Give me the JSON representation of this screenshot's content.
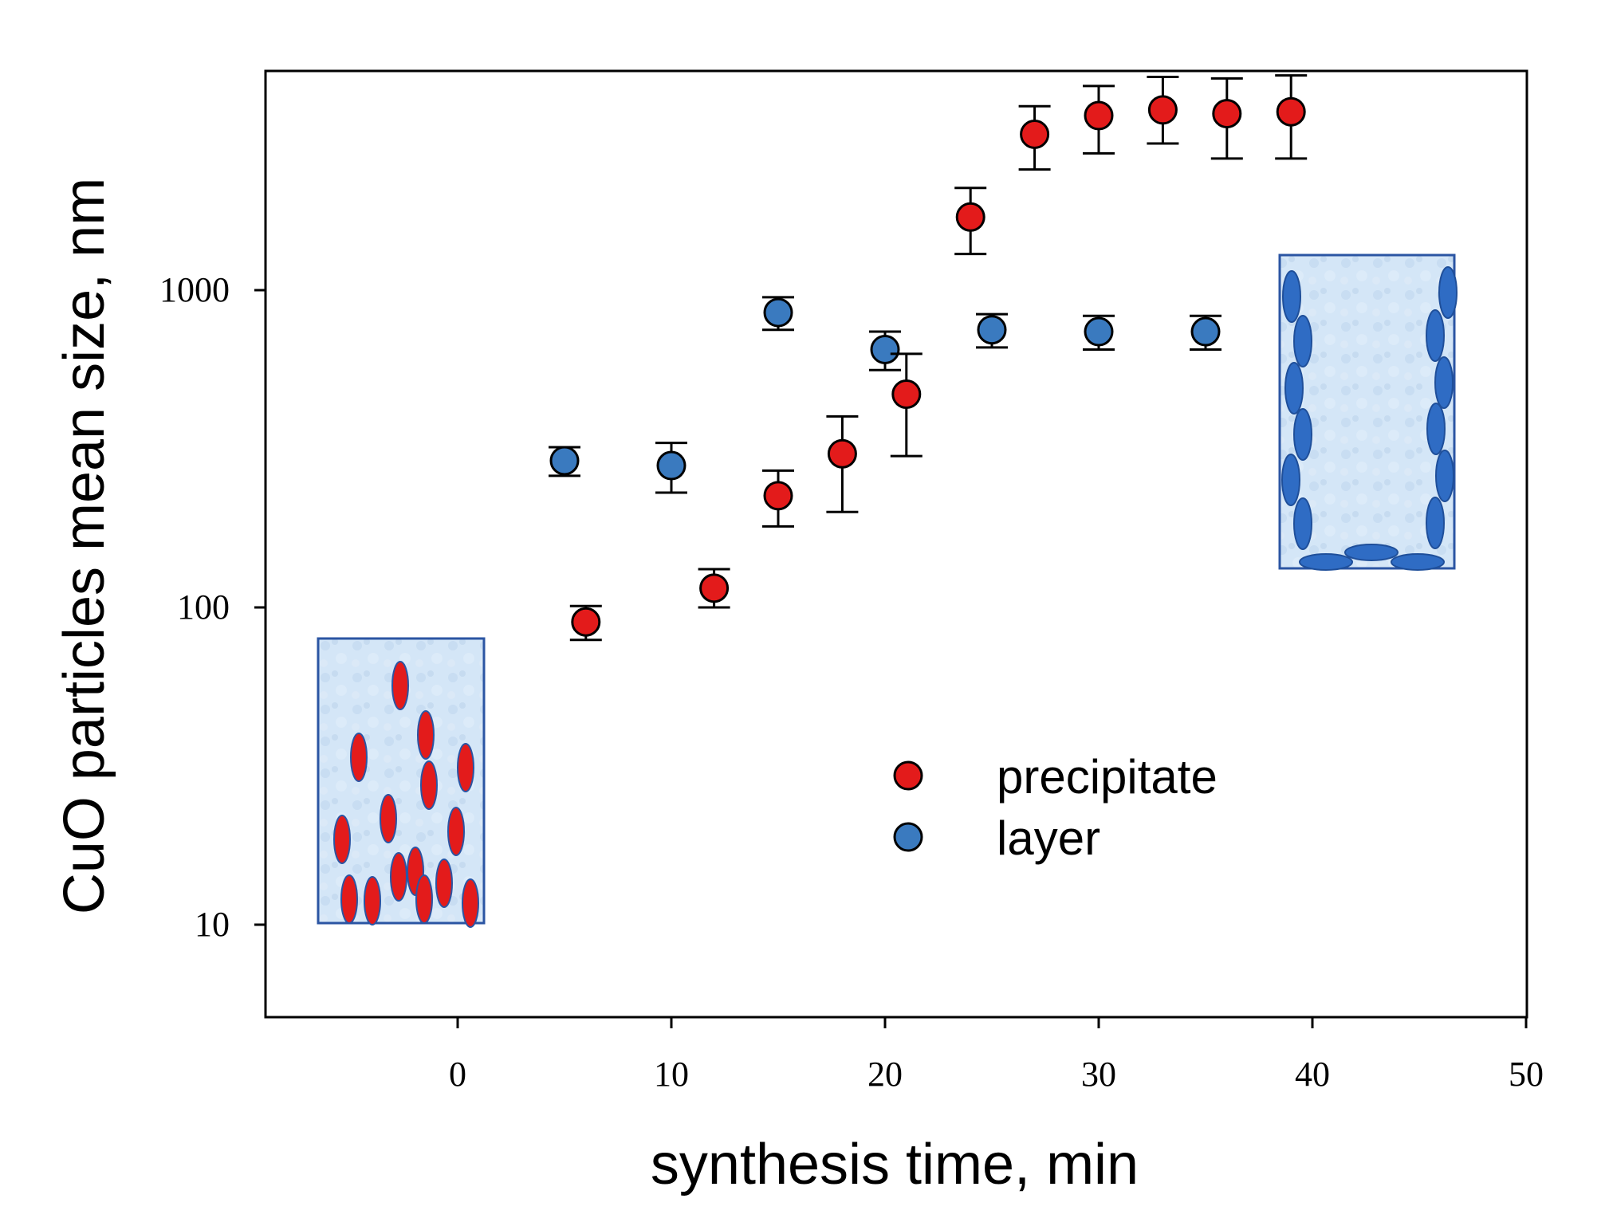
{
  "chart_data": {
    "type": "scatter",
    "title": "",
    "xlabel": "synthesis time, min",
    "ylabel": "CuO particles mean size, nm",
    "xlim": [
      -9,
      50
    ],
    "ylim": [
      5,
      5000
    ],
    "yscale": "log",
    "x_ticks": [
      0,
      10,
      20,
      30,
      40,
      50
    ],
    "x_tick_labels": [
      "0",
      "10",
      "20",
      "30",
      "40",
      "50"
    ],
    "y_ticks": [
      10,
      100,
      1000
    ],
    "y_tick_labels": [
      "10",
      "100",
      "1000"
    ],
    "grid": false,
    "legend_position": "center-right",
    "series": [
      {
        "name": "precipitate",
        "color": "#e31b1b",
        "points": [
          {
            "x": 6,
            "y": 90,
            "lo": 79,
            "hi": 101
          },
          {
            "x": 12,
            "y": 115,
            "lo": 100,
            "hi": 132
          },
          {
            "x": 15,
            "y": 225,
            "lo": 180,
            "hi": 270
          },
          {
            "x": 18,
            "y": 305,
            "lo": 200,
            "hi": 400
          },
          {
            "x": 21,
            "y": 470,
            "lo": 300,
            "hi": 630
          },
          {
            "x": 24,
            "y": 1700,
            "lo": 1300,
            "hi": 2100
          },
          {
            "x": 27,
            "y": 3100,
            "lo": 2400,
            "hi": 3800
          },
          {
            "x": 30,
            "y": 3550,
            "lo": 2700,
            "hi": 4400
          },
          {
            "x": 33,
            "y": 3700,
            "lo": 2900,
            "hi": 4700
          },
          {
            "x": 36,
            "y": 3600,
            "lo": 2600,
            "hi": 4650
          },
          {
            "x": 39,
            "y": 3650,
            "lo": 2600,
            "hi": 4750
          }
        ]
      },
      {
        "name": "layer",
        "color": "#3a7abf",
        "points": [
          {
            "x": 5,
            "y": 290,
            "lo": 260,
            "hi": 320
          },
          {
            "x": 10,
            "y": 280,
            "lo": 230,
            "hi": 330
          },
          {
            "x": 15,
            "y": 850,
            "lo": 750,
            "hi": 950
          },
          {
            "x": 20,
            "y": 650,
            "lo": 560,
            "hi": 740
          },
          {
            "x": 25,
            "y": 750,
            "lo": 660,
            "hi": 840
          },
          {
            "x": 30,
            "y": 740,
            "lo": 650,
            "hi": 830
          },
          {
            "x": 35,
            "y": 740,
            "lo": 650,
            "hi": 830
          }
        ]
      }
    ],
    "insets": [
      {
        "name": "precipitate-vial",
        "description": "particles dispersed throughout",
        "color": "#e31b1b"
      },
      {
        "name": "layer-vial",
        "description": "particles on walls and bottom",
        "color": "#2f6cc4"
      }
    ]
  }
}
